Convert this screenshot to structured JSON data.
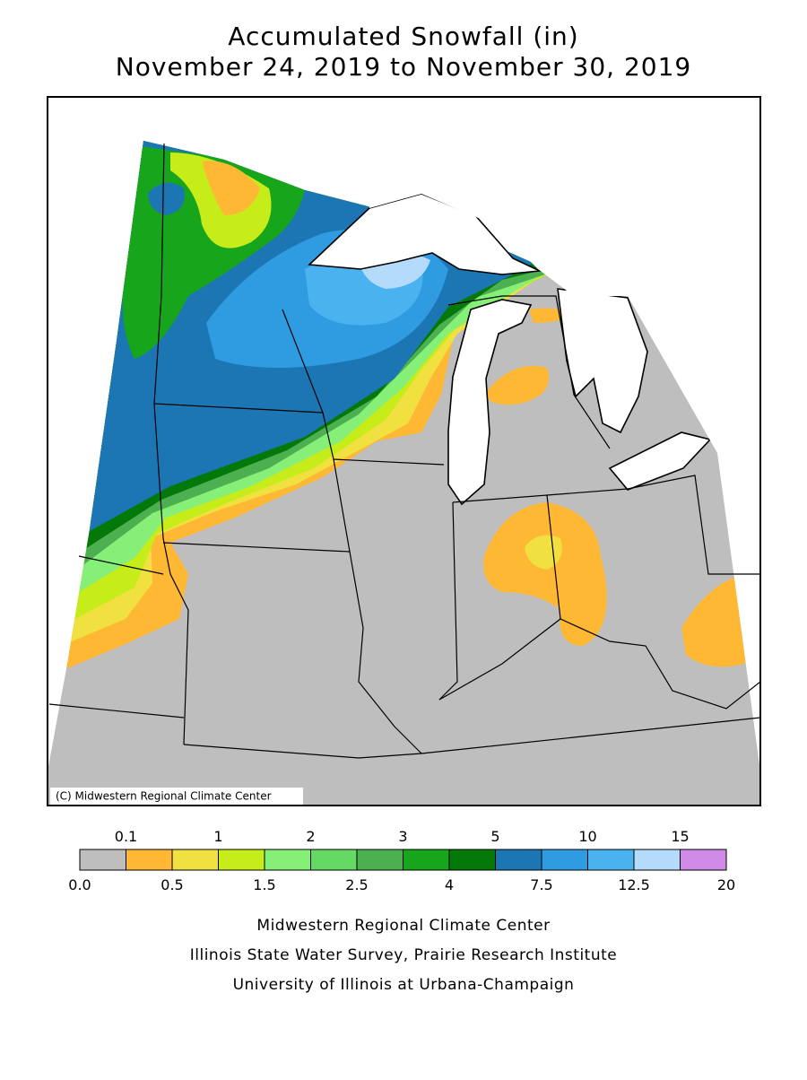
{
  "header": {
    "title": "Accumulated Snowfall (in)",
    "subtitle": "November 24, 2019 to November 30, 2019"
  },
  "map": {
    "credit": "(C) Midwestern Regional Climate Center"
  },
  "legend": {
    "breaks": [
      "0.0",
      "0.1",
      "0.5",
      "1",
      "1.5",
      "2",
      "2.5",
      "3",
      "4",
      "5",
      "7.5",
      "10",
      "12.5",
      "15",
      "20"
    ],
    "colors": [
      "#bebebe",
      "#ffb833",
      "#f0e040",
      "#c6ec1a",
      "#86ef77",
      "#64d964",
      "#4caf50",
      "#17a51b",
      "#04790a",
      "#1c76b4",
      "#2f9be0",
      "#4ab2ee",
      "#b4dbfa",
      "#d08ae8"
    ]
  },
  "footer": {
    "lines": [
      "Midwestern Regional Climate Center",
      "Illinois State Water Survey, Prairie Research Institute",
      "University of Illinois at Urbana-Champaign"
    ]
  }
}
